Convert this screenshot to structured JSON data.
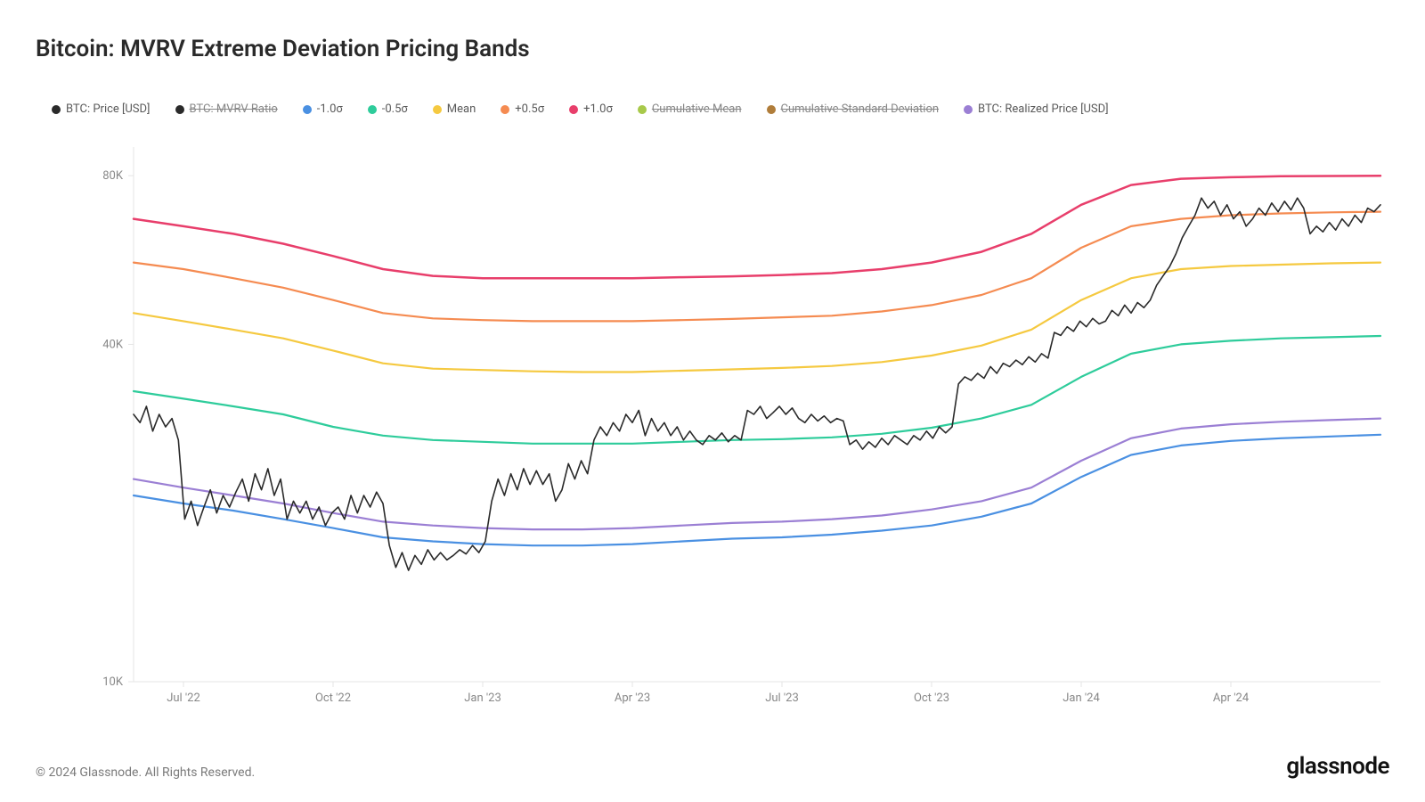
{
  "title": "Bitcoin: MVRV Extreme Deviation Pricing Bands",
  "footer": {
    "copyright": "© 2024 Glassnode. All Rights Reserved.",
    "brand": "glassnode"
  },
  "legend": [
    {
      "label": "BTC: Price [USD]",
      "color": "#2a2a2a",
      "strike": false
    },
    {
      "label": "BTC: MVRV Ratio",
      "color": "#2a2a2a",
      "strike": true
    },
    {
      "label": "-1.0σ",
      "color": "#4a90e2",
      "strike": false
    },
    {
      "label": "-0.5σ",
      "color": "#2ecc9b",
      "strike": false
    },
    {
      "label": "Mean",
      "color": "#f5c940",
      "strike": false
    },
    {
      "label": "+0.5σ",
      "color": "#f58b51",
      "strike": false
    },
    {
      "label": "+1.0σ",
      "color": "#e83e6b",
      "strike": false
    },
    {
      "label": "Cumulative Mean",
      "color": "#a8c94a",
      "strike": true
    },
    {
      "label": "Cumulative Standard Deviation",
      "color": "#b07d3a",
      "strike": true
    },
    {
      "label": "BTC: Realized Price [USD]",
      "color": "#9b7fd4",
      "strike": false
    }
  ],
  "chart": {
    "type": "line",
    "background_color": "#ffffff",
    "grid_color": "#e5e5e5",
    "label_color": "#888888",
    "label_fontsize": 13,
    "yscale": "log",
    "ylim": [
      10000,
      90000
    ],
    "yticks": [
      {
        "v": 10000,
        "label": "10K"
      },
      {
        "v": 40000,
        "label": "40K"
      },
      {
        "v": 80000,
        "label": "80K"
      }
    ],
    "xlim": [
      0,
      25
    ],
    "xticks": [
      {
        "v": 1,
        "label": "Jul '22"
      },
      {
        "v": 4,
        "label": "Oct '22"
      },
      {
        "v": 7,
        "label": "Jan '23"
      },
      {
        "v": 10,
        "label": "Apr '23"
      },
      {
        "v": 13,
        "label": "Jul '23"
      },
      {
        "v": 16,
        "label": "Oct '23"
      },
      {
        "v": 19,
        "label": "Jan '24"
      },
      {
        "v": 22,
        "label": "Apr '24"
      }
    ],
    "series": {
      "plus10": {
        "color": "#e83e6b",
        "width": 2.5,
        "values": [
          67000,
          65000,
          63000,
          60500,
          57500,
          54500,
          53000,
          52500,
          52500,
          52500,
          52500,
          52700,
          52900,
          53200,
          53600,
          54500,
          56000,
          58500,
          63000,
          71000,
          77000,
          79000,
          79500,
          79800,
          79900,
          80000
        ]
      },
      "plus05": {
        "color": "#f58b51",
        "width": 2.3,
        "values": [
          56000,
          54500,
          52500,
          50500,
          48000,
          45500,
          44500,
          44200,
          44000,
          44000,
          44000,
          44200,
          44400,
          44700,
          45000,
          45800,
          47000,
          49000,
          52500,
          59500,
          65000,
          67000,
          68000,
          68500,
          68800,
          69000
        ]
      },
      "mean": {
        "color": "#f5c940",
        "width": 2.3,
        "values": [
          45500,
          44000,
          42500,
          41000,
          39000,
          37000,
          36200,
          36000,
          35800,
          35700,
          35700,
          35900,
          36100,
          36300,
          36600,
          37200,
          38200,
          39800,
          42500,
          48000,
          52500,
          54500,
          55200,
          55500,
          55800,
          56000
        ]
      },
      "minus05": {
        "color": "#2ecc9b",
        "width": 2.3,
        "values": [
          33000,
          32000,
          31000,
          30000,
          28500,
          27500,
          27000,
          26800,
          26600,
          26600,
          26600,
          26800,
          27000,
          27100,
          27300,
          27700,
          28400,
          29500,
          31200,
          35000,
          38500,
          40000,
          40600,
          41000,
          41200,
          41400
        ]
      },
      "realized": {
        "color": "#9b7fd4",
        "width": 2.3,
        "values": [
          23000,
          22200,
          21500,
          20800,
          20000,
          19300,
          19000,
          18800,
          18700,
          18700,
          18800,
          19000,
          19200,
          19300,
          19500,
          19800,
          20300,
          21000,
          22200,
          24800,
          27200,
          28300,
          28800,
          29100,
          29300,
          29500
        ]
      },
      "minus10": {
        "color": "#4a90e2",
        "width": 2.3,
        "values": [
          21500,
          20800,
          20200,
          19500,
          18800,
          18100,
          17800,
          17600,
          17500,
          17500,
          17600,
          17800,
          18000,
          18100,
          18300,
          18600,
          19000,
          19700,
          20800,
          23200,
          25400,
          26400,
          26900,
          27200,
          27400,
          27600
        ]
      }
    },
    "price": {
      "color": "#2a2a2a",
      "width": 1.6,
      "values": [
        30000,
        29000,
        31000,
        28000,
        30000,
        28500,
        29500,
        27000,
        19500,
        21000,
        19000,
        20500,
        22000,
        20000,
        21500,
        20500,
        21800,
        23000,
        21000,
        23500,
        22000,
        24000,
        21500,
        23000,
        19500,
        21000,
        20000,
        21000,
        19500,
        20500,
        19000,
        20000,
        20500,
        19500,
        21500,
        20000,
        21500,
        20500,
        21800,
        20800,
        17500,
        16000,
        17000,
        15800,
        16800,
        16200,
        17200,
        16500,
        17000,
        16500,
        16800,
        17200,
        16900,
        17500,
        17000,
        17800,
        21000,
        23000,
        21500,
        23500,
        22000,
        24000,
        22500,
        23800,
        22500,
        23500,
        21000,
        22000,
        24500,
        23000,
        24800,
        23500,
        27000,
        28500,
        27500,
        29000,
        28000,
        30000,
        29000,
        30500,
        27500,
        29500,
        28000,
        29000,
        27500,
        28500,
        27000,
        28000,
        27000,
        26500,
        27500,
        27000,
        27800,
        26800,
        27500,
        27000,
        30500,
        30000,
        31000,
        29500,
        30200,
        31000,
        30000,
        30800,
        29500,
        29000,
        30000,
        29200,
        29800,
        29000,
        29500,
        29200,
        26500,
        27000,
        26000,
        26800,
        26200,
        27200,
        26500,
        27500,
        27000,
        26500,
        27500,
        27000,
        28000,
        27200,
        28500,
        27800,
        28500,
        34000,
        35000,
        34500,
        35500,
        34800,
        36500,
        35500,
        37000,
        36500,
        37500,
        36800,
        38000,
        37200,
        38500,
        37800,
        42000,
        41500,
        43000,
        42200,
        44000,
        43000,
        44500,
        43500,
        44000,
        46000,
        45000,
        47000,
        45500,
        47500,
        46500,
        48000,
        51000,
        53000,
        55000,
        58000,
        62000,
        65000,
        68000,
        73000,
        70000,
        72000,
        68000,
        71000,
        67000,
        69000,
        65000,
        67000,
        70000,
        68000,
        71500,
        69000,
        72000,
        69500,
        73000,
        70000,
        63000,
        65000,
        63500,
        66000,
        64000,
        67000,
        65000,
        68000,
        66000,
        70000,
        69000,
        71000
      ]
    }
  }
}
